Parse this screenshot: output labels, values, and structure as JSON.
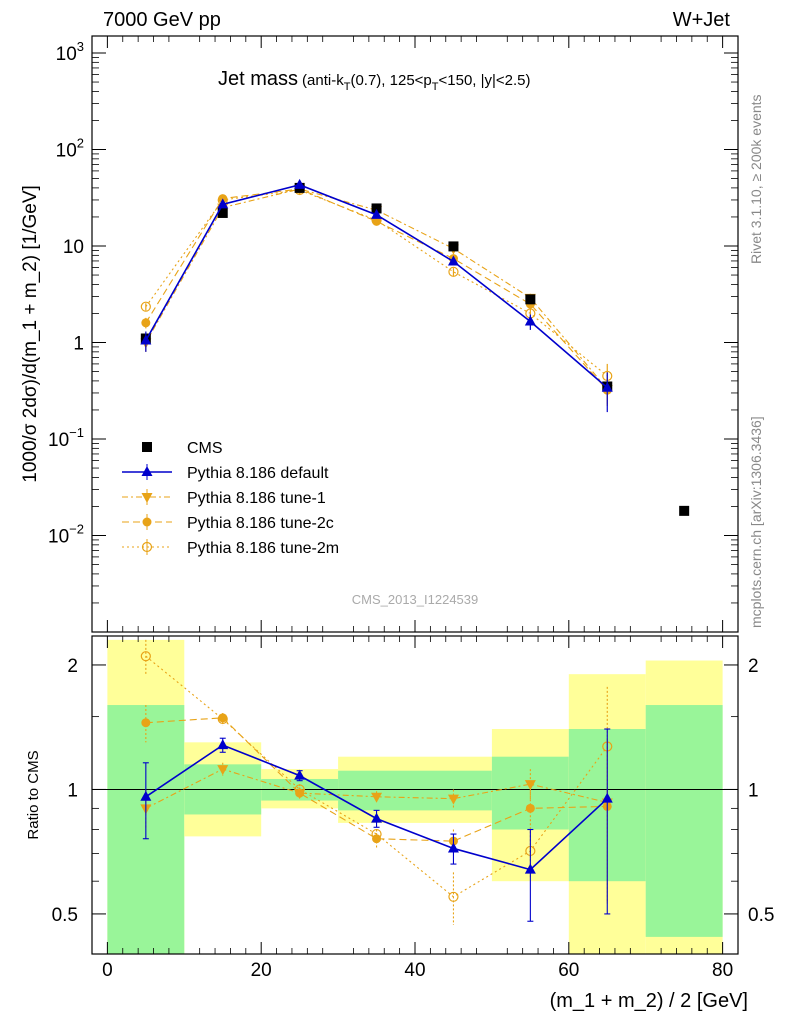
{
  "header": {
    "left": "7000 GeV pp",
    "right": "W+Jet"
  },
  "side_text": {
    "rivet": "Rivet 3.1.10, ≥ 200k events",
    "mcplots": "mcplots.cern.ch [arXiv:1306.3436]"
  },
  "watermark": "CMS_2013_I1224539",
  "colors": {
    "cms": "#000000",
    "default": "#0000cc",
    "tune": "#e8a317",
    "green_band": "#99f599",
    "yellow_band": "#ffff99"
  },
  "chart_data": [
    {
      "type": "scatter",
      "title_main": "Jet mass",
      "title_sub": {
        "p1": "(anti-k",
        "s1": "T",
        "p2": "(0.7), 125<p",
        "s2": "T",
        "p3": "<150, |y|<2.5)"
      },
      "ylabel": "1000/σ 2dσ)/d(m_1 + m_2) [1/GeV]",
      "yscale": "log",
      "ylim": [
        0.001,
        1500
      ],
      "xlim": [
        -2,
        82
      ],
      "y_ticks": [
        {
          "v": 0.01,
          "base": "10",
          "exp": "−2"
        },
        {
          "v": 0.1,
          "base": "10",
          "exp": "−1"
        },
        {
          "v": 1,
          "base": "1",
          "exp": ""
        },
        {
          "v": 10,
          "base": "10",
          "exp": ""
        },
        {
          "v": 100,
          "base": "10",
          "exp": "2"
        },
        {
          "v": 1000,
          "base": "10",
          "exp": "3"
        }
      ],
      "legend_position": "lower-left",
      "x": [
        5,
        15,
        25,
        35,
        45,
        55,
        65,
        75
      ],
      "series": [
        {
          "name": "CMS",
          "key": "cms",
          "marker": "square",
          "values": [
            1.1,
            22,
            40,
            24.5,
            9.9,
            2.8,
            0.35,
            0.018
          ]
        },
        {
          "name": "Pythia 8.186 default",
          "key": "default",
          "marker": "triangle-up",
          "values": [
            1.05,
            27,
            43,
            21,
            6.9,
            1.65,
            0.34
          ],
          "errors": [
            0.25,
            1.5,
            2,
            1,
            0.5,
            0.3,
            0.15
          ]
        },
        {
          "name": "Pythia 8.186 tune-1",
          "key": "tune1",
          "marker": "triangle-down",
          "values": [
            1.0,
            25,
            39,
            23.5,
            9.4,
            2.9,
            0.33
          ],
          "errors": [
            0.2,
            1.2,
            1.5,
            1,
            0.5,
            0.3,
            0.1
          ]
        },
        {
          "name": "Pythia 8.186 tune-2c",
          "key": "tune2c",
          "marker": "circle",
          "values": [
            1.6,
            31,
            39,
            18,
            7.4,
            2.5,
            0.32
          ],
          "errors": [
            0.2,
            1.2,
            1.5,
            1,
            0.5,
            0.3,
            0.1
          ]
        },
        {
          "name": "Pythia 8.186 tune-2m",
          "key": "tune2m",
          "marker": "circle-open",
          "values": [
            2.35,
            30,
            38,
            18.5,
            5.4,
            2.0,
            0.45
          ],
          "errors": [
            0.2,
            1.2,
            1.5,
            1,
            0.5,
            0.3,
            0.15
          ]
        }
      ]
    },
    {
      "type": "scatter",
      "ylabel": "Ratio to CMS",
      "xlabel": "(m_1 + m_2) / 2 [GeV]",
      "yscale": "log",
      "ylim": [
        0.4,
        2.35
      ],
      "xlim": [
        -2,
        82
      ],
      "x_ticks": [
        0,
        20,
        40,
        60,
        80
      ],
      "y_ticks": [
        0.5,
        1,
        2
      ],
      "reference_line": 1,
      "bands": [
        {
          "x0": 0,
          "x1": 10,
          "green": [
            0.4,
            1.6
          ],
          "yellow": [
            0.4,
            2.3
          ]
        },
        {
          "x0": 10,
          "x1": 20,
          "green": [
            0.87,
            1.15
          ],
          "yellow": [
            0.77,
            1.3
          ]
        },
        {
          "x0": 20,
          "x1": 30,
          "green": [
            0.94,
            1.06
          ],
          "yellow": [
            0.9,
            1.12
          ]
        },
        {
          "x0": 30,
          "x1": 50,
          "green": [
            0.89,
            1.11
          ],
          "yellow": [
            0.83,
            1.2
          ]
        },
        {
          "x0": 50,
          "x1": 60,
          "green": [
            0.8,
            1.2
          ],
          "yellow": [
            0.6,
            1.4
          ]
        },
        {
          "x0": 60,
          "x1": 70,
          "green": [
            0.6,
            1.4
          ],
          "yellow": [
            0.4,
            1.9
          ]
        },
        {
          "x0": 70,
          "x1": 80,
          "green": [
            0.44,
            1.6
          ],
          "yellow": [
            0.4,
            2.05
          ]
        }
      ],
      "x": [
        5,
        15,
        25,
        35,
        45,
        55,
        65
      ],
      "series": [
        {
          "name": "Pythia 8.186 default",
          "key": "default",
          "values": [
            0.96,
            1.28,
            1.08,
            0.85,
            0.72,
            0.64,
            0.95
          ],
          "errors": [
            0.2,
            0.05,
            0.03,
            0.04,
            0.06,
            0.16,
            0.45
          ]
        },
        {
          "name": "Pythia 8.186 tune-1",
          "key": "tune1",
          "values": [
            0.9,
            1.12,
            0.98,
            0.96,
            0.95,
            1.03,
            0.93
          ],
          "errors": [
            0.1,
            0.04,
            0.03,
            0.03,
            0.05,
            0.09,
            0.4
          ]
        },
        {
          "name": "Pythia 8.186 tune-2c",
          "key": "tune2c",
          "values": [
            1.45,
            1.49,
            0.98,
            0.76,
            0.75,
            0.9,
            0.91
          ],
          "errors": [
            0.15,
            0.04,
            0.03,
            0.04,
            0.05,
            0.09,
            0.38
          ]
        },
        {
          "name": "Pythia 8.186 tune-2m",
          "key": "tune2m",
          "values": [
            2.1,
            1.48,
            1.0,
            0.78,
            0.55,
            0.71,
            1.27
          ],
          "errors": [
            0.2,
            0.05,
            0.03,
            0.04,
            0.08,
            0.1,
            0.5
          ]
        }
      ]
    }
  ]
}
